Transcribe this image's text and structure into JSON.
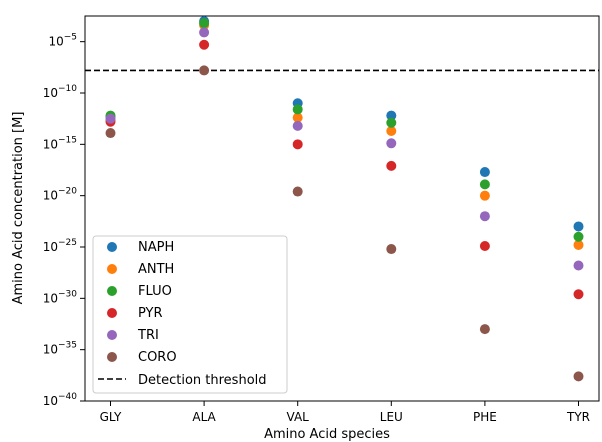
{
  "chart_data": {
    "type": "scatter",
    "categories": [
      "GLY",
      "ALA",
      "VAL",
      "LEU",
      "PHE",
      "TYR"
    ],
    "xlabel": "Amino Acid species",
    "ylabel": "Amino Acid concentration [M]",
    "yscale": "log",
    "ylim_exp": [
      -40,
      -2.5
    ],
    "ytick_exps": [
      -40,
      -35,
      -30,
      -25,
      -20,
      -15,
      -10,
      -5
    ],
    "grid": false,
    "legend_position": "lower-left",
    "threshold": {
      "name": "Detection threshold",
      "y_exp": -7.8,
      "style": "dashed",
      "color": "#000000"
    },
    "series": [
      {
        "name": "NAPH",
        "color": "#1f77b4",
        "y_exp": [
          -12.3,
          -3.0,
          -11.0,
          -12.2,
          -17.7,
          -23.0
        ]
      },
      {
        "name": "ANTH",
        "color": "#ff7f0e",
        "y_exp": [
          -12.6,
          -3.4,
          -12.4,
          -13.7,
          -20.0,
          -24.8
        ]
      },
      {
        "name": "FLUO",
        "color": "#2ca02c",
        "y_exp": [
          -12.2,
          -3.2,
          -11.6,
          -12.9,
          -18.9,
          -24.0
        ]
      },
      {
        "name": "PYR",
        "color": "#d62728",
        "y_exp": [
          -12.8,
          -5.3,
          -15.0,
          -17.1,
          -24.9,
          -29.6
        ]
      },
      {
        "name": "TRI",
        "color": "#9467bd",
        "y_exp": [
          -12.5,
          -4.1,
          -13.2,
          -14.9,
          -22.0,
          -26.8
        ]
      },
      {
        "name": "CORO",
        "color": "#8c564b",
        "y_exp": [
          -13.9,
          -7.8,
          -19.6,
          -25.2,
          -33.0,
          -37.6
        ]
      }
    ]
  }
}
